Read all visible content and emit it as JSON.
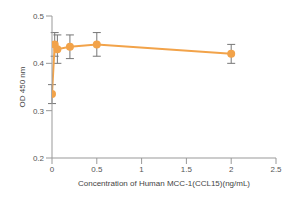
{
  "chart_data": {
    "type": "line",
    "x_label": "Concentration of Human MCC-1(CCL15)(ng/mL)",
    "y_label": "OD 450 nm",
    "x": [
      0,
      0.03,
      0.06,
      0.2,
      0.5,
      2
    ],
    "values": [
      0.335,
      0.44,
      0.43,
      0.435,
      0.44,
      0.42
    ],
    "errors": [
      0.02,
      0.025,
      0.03,
      0.025,
      0.025,
      0.02
    ],
    "color": "#f2a34a",
    "marker": "circle",
    "xlim": [
      0,
      2.5
    ],
    "xticks": [
      0,
      0.5,
      1,
      1.5,
      2,
      2.5
    ],
    "ylim": [
      0.2,
      0.5
    ],
    "yticks": [
      0.2,
      0.3,
      0.4,
      0.5
    ],
    "grid": false
  }
}
